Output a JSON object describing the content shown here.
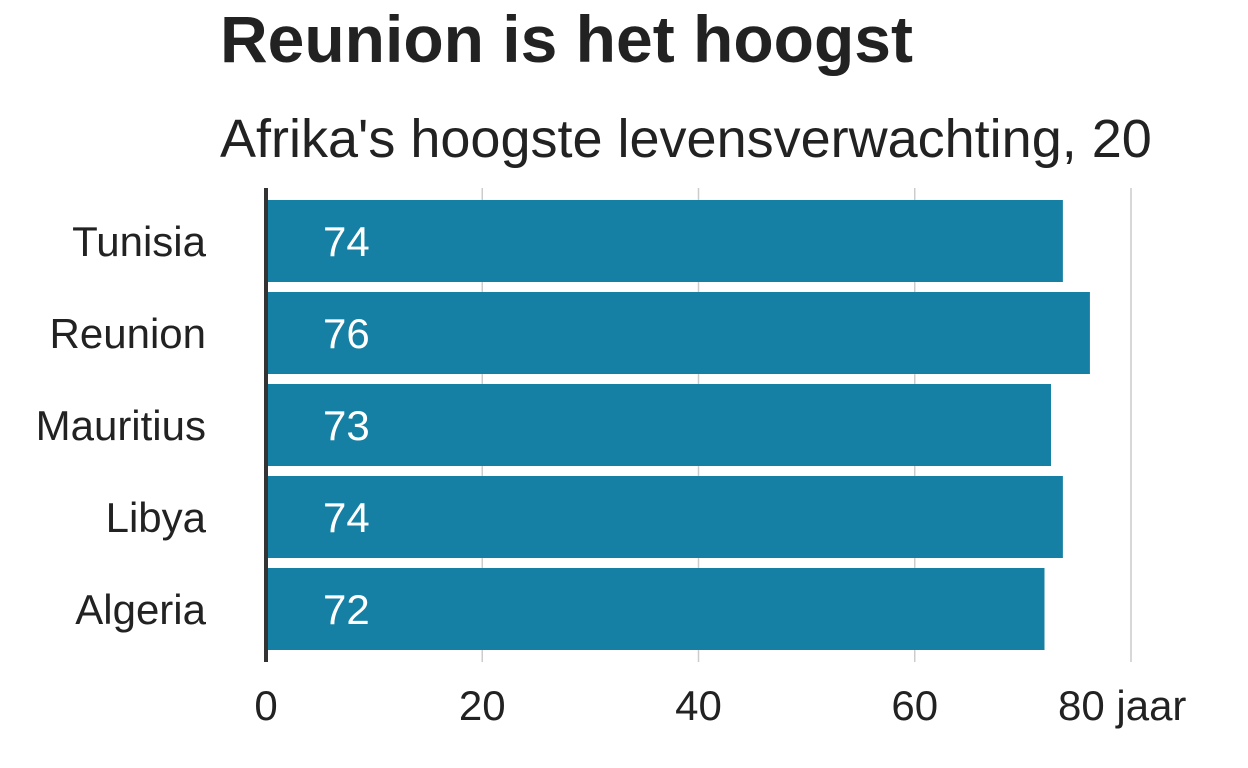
{
  "title": "Reunion is het hoogst",
  "subtitle": "Afrika's hoogste levensverwachting, 20",
  "chart_data": {
    "type": "bar",
    "orientation": "horizontal",
    "categories": [
      "Tunisia",
      "Reunion",
      "Mauritius",
      "Libya",
      "Algeria"
    ],
    "values": [
      73.7,
      76.2,
      72.6,
      73.7,
      72.0
    ],
    "data_labels": [
      "74",
      "76",
      "73",
      "74",
      "72"
    ],
    "x_ticks": [
      0,
      20,
      40,
      60,
      80
    ],
    "x_tick_labels": [
      "0",
      "20",
      "40",
      "60",
      "80 jaar"
    ],
    "xlim": [
      0,
      80
    ],
    "grid": true,
    "bar_color": "#1580a3"
  }
}
